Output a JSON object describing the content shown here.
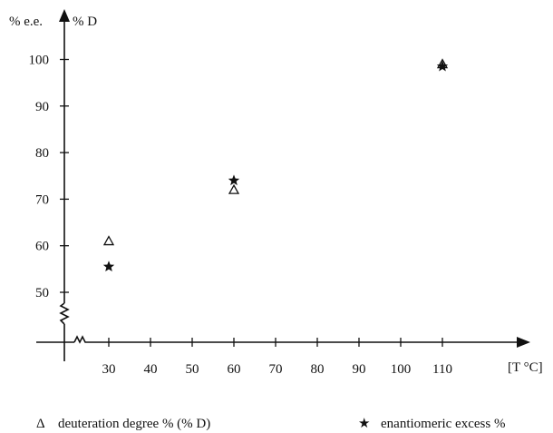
{
  "chart_data": {
    "type": "scatter",
    "ylabel_left": "% e.e.",
    "ylabel_right": "% D",
    "xlabel": "[T °C]",
    "x_ticks": [
      30,
      40,
      50,
      60,
      70,
      80,
      90,
      100,
      110
    ],
    "y_ticks": [
      50,
      60,
      70,
      80,
      90,
      100
    ],
    "xlim": [
      20,
      120
    ],
    "ylim": [
      40,
      105
    ],
    "axis_breaks": "both",
    "grid": false,
    "legend_position": "bottom",
    "series": [
      {
        "name": "deuteration degree % (% D)",
        "marker": "open-triangle",
        "points": [
          {
            "x": 30,
            "y": 61
          },
          {
            "x": 60,
            "y": 72
          },
          {
            "x": 110,
            "y": 99
          }
        ]
      },
      {
        "name": "enantiomeric excess %",
        "marker": "filled-star",
        "points": [
          {
            "x": 30,
            "y": 55.5
          },
          {
            "x": 60,
            "y": 74
          },
          {
            "x": 110,
            "y": 98.5
          }
        ]
      }
    ],
    "legend": {
      "triangle_symbol": "Δ",
      "triangle_label": "deuteration degree % (% D)",
      "star_symbol": "★",
      "star_label": "enantiomeric excess %"
    }
  }
}
